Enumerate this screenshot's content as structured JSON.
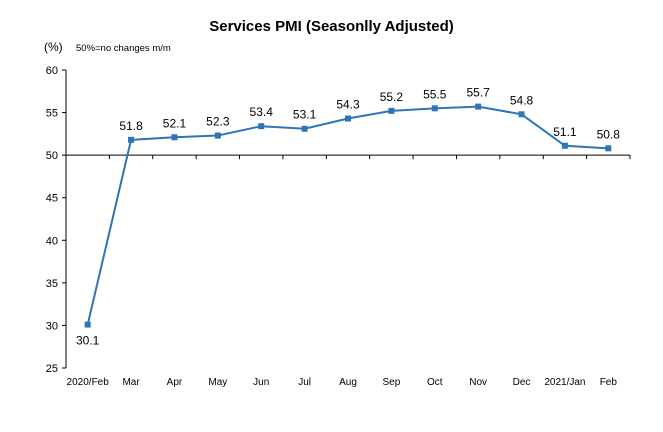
{
  "chart_data": {
    "type": "line",
    "title": "Services PMI (Seasonlly Adjusted)",
    "y_unit": "(%)",
    "note": "50%=no changes  m/m",
    "xlabel": "",
    "ylabel": "",
    "ylim": [
      25,
      60
    ],
    "yticks": [
      25,
      30,
      35,
      40,
      45,
      50,
      55,
      60
    ],
    "baseline": 50,
    "categories": [
      "2020/Feb",
      "Mar",
      "Apr",
      "May",
      "Jun",
      "Jul",
      "Aug",
      "Sep",
      "Oct",
      "Nov",
      "Dec",
      "2021/Jan",
      "Feb"
    ],
    "values": [
      30.1,
      51.8,
      52.1,
      52.3,
      53.4,
      53.1,
      54.3,
      55.2,
      55.5,
      55.7,
      54.8,
      51.1,
      50.8
    ],
    "data_labels": [
      "30.1",
      "51.8",
      "52.1",
      "52.3",
      "53.4",
      "53.1",
      "54.3",
      "55.2",
      "55.5",
      "55.7",
      "54.8",
      "51.1",
      "50.8"
    ],
    "line_color": "#2E75B6",
    "grid": false,
    "legend": "none"
  }
}
